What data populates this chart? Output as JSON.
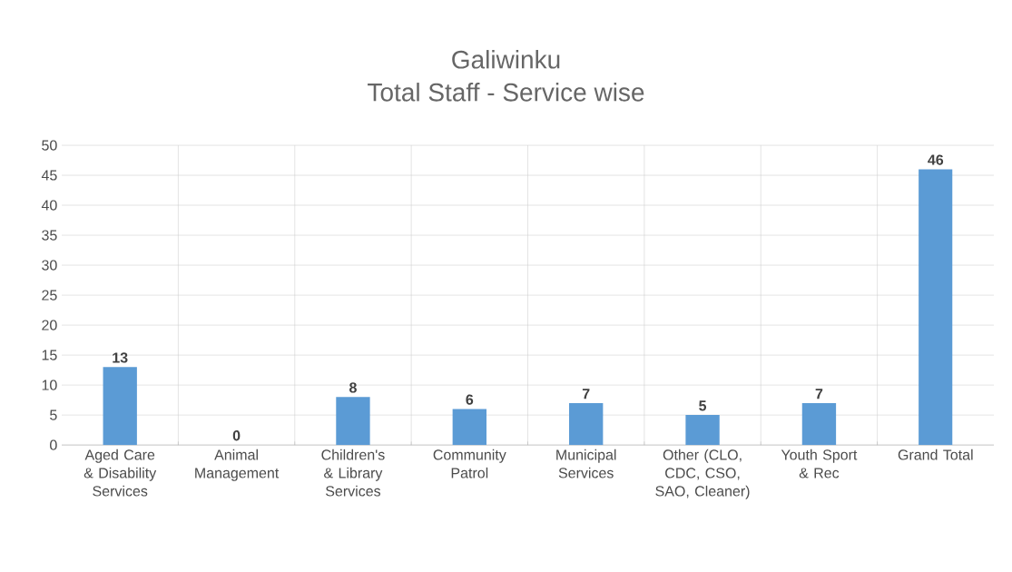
{
  "chart_data": {
    "type": "bar",
    "title": "Galiwinku",
    "subtitle": "Total Staff - Service wise",
    "categories": [
      "Aged Care & Disability Services",
      "Animal Management",
      "Children's & Library Services",
      "Community Patrol",
      "Municipal Services",
      "Other (CLO, CDC, CSO, SAO, Cleaner)",
      "Youth Sport & Rec",
      "Grand Total"
    ],
    "values": [
      13,
      0,
      8,
      6,
      7,
      5,
      7,
      46
    ],
    "color": "#5b9bd5",
    "ylim": [
      0,
      50
    ],
    "yticks": [
      0,
      5,
      10,
      15,
      20,
      25,
      30,
      35,
      40,
      45,
      50
    ],
    "grid": true,
    "data_labels": true
  }
}
